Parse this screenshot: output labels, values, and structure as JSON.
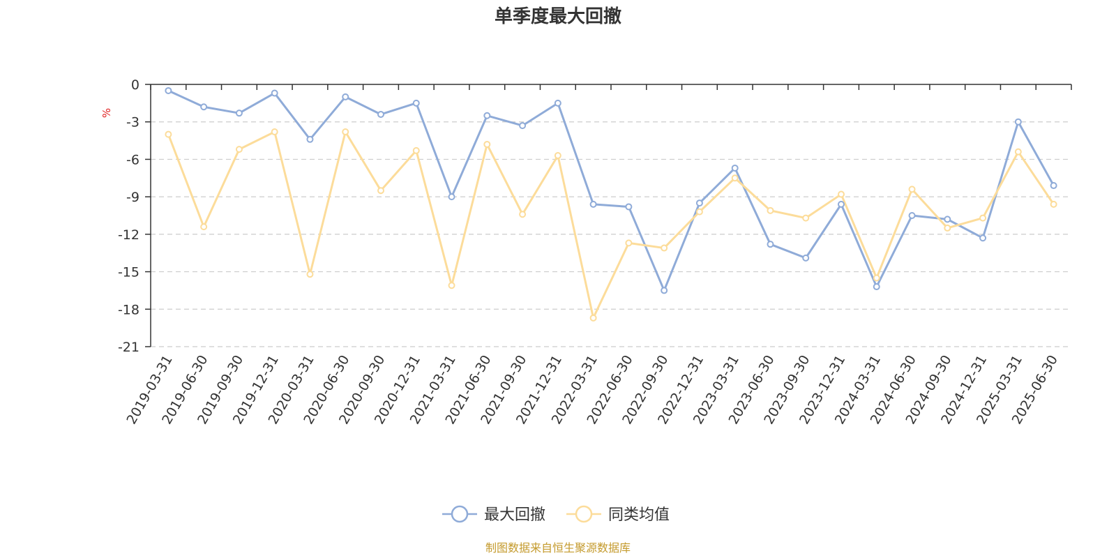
{
  "page": {
    "source_text": "制图数据来自恒生聚源数据库"
  },
  "chart_data": {
    "type": "line",
    "title": "单季度最大回撤",
    "ylabel": "%",
    "ylim": [
      -21,
      0
    ],
    "yticks": [
      0,
      -3,
      -6,
      -9,
      -12,
      -15,
      -18,
      -21
    ],
    "grid": true,
    "legend_position": "bottom-center",
    "categories": [
      "2019-03-31",
      "2019-06-30",
      "2019-09-30",
      "2019-12-31",
      "2020-03-31",
      "2020-06-30",
      "2020-09-30",
      "2020-12-31",
      "2021-03-31",
      "2021-06-30",
      "2021-09-30",
      "2021-12-31",
      "2022-03-31",
      "2022-06-30",
      "2022-09-30",
      "2022-12-31",
      "2023-03-31",
      "2023-06-30",
      "2023-09-30",
      "2023-12-31",
      "2024-03-31",
      "2024-06-30",
      "2024-09-30",
      "2024-12-31",
      "2025-03-31",
      "2025-06-30"
    ],
    "series": [
      {
        "name": "最大回撤",
        "color": "#8fabd8",
        "values": [
          -0.5,
          -1.8,
          -2.3,
          -0.7,
          -4.4,
          -1.0,
          -2.4,
          -1.5,
          -9.0,
          -2.5,
          -3.3,
          -1.5,
          -9.6,
          -9.8,
          -16.5,
          -9.5,
          -6.7,
          -12.8,
          -13.9,
          -9.6,
          -16.2,
          -10.5,
          -10.8,
          -12.3,
          -3.0,
          -8.1
        ]
      },
      {
        "name": "同类均值",
        "color": "#fcdc9a",
        "values": [
          -4.0,
          -11.4,
          -5.2,
          -3.8,
          -15.2,
          -3.8,
          -8.5,
          -5.3,
          -16.1,
          -4.8,
          -10.4,
          -5.7,
          -18.7,
          -12.7,
          -13.1,
          -10.2,
          -7.5,
          -10.1,
          -10.7,
          -8.8,
          -15.5,
          -8.4,
          -11.5,
          -10.7,
          -5.4,
          -9.6
        ]
      }
    ]
  }
}
